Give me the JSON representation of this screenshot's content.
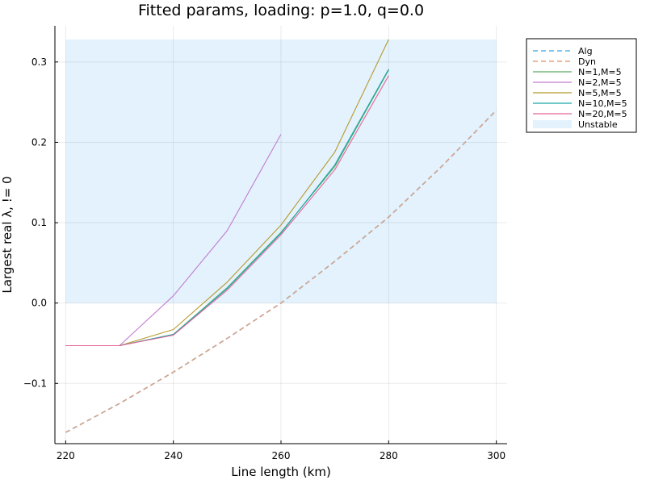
{
  "chart_data": {
    "type": "line",
    "title": "Fitted params, loading: p=1.0, q=0.0",
    "xlabel": "Line length (km)",
    "ylabel": "Largest real λ, != 0",
    "xlim": [
      218,
      302
    ],
    "ylim": [
      -0.175,
      0.345
    ],
    "x_ticks": [
      220,
      240,
      260,
      280,
      300
    ],
    "y_ticks": [
      -0.1,
      0.0,
      0.1,
      0.2,
      0.3
    ],
    "x_tick_labels": [
      "220",
      "240",
      "260",
      "280",
      "300"
    ],
    "y_tick_labels": [
      "−0.1",
      "0.0",
      "0.1",
      "0.2",
      "0.3"
    ],
    "grid": true,
    "legend_position": "top-right (outside plot)",
    "unstable_region": {
      "x": [
        220,
        300
      ],
      "y": [
        0.0,
        0.328
      ],
      "color": "#e3f2fd",
      "label": "Unstable"
    },
    "series": [
      {
        "name": "Alg",
        "color": "#56b4e9",
        "dash": "dashed",
        "x": [
          220,
          230,
          240,
          250,
          260,
          270,
          280,
          290,
          300
        ],
        "y": [
          -0.161,
          -0.125,
          -0.086,
          -0.044,
          0.0,
          0.052,
          0.107,
          0.171,
          0.24
        ]
      },
      {
        "name": "Dyn",
        "color": "#e69f7a",
        "dash": "dashed",
        "x": [
          220,
          230,
          240,
          250,
          260,
          270,
          280,
          290,
          300
        ],
        "y": [
          -0.161,
          -0.125,
          -0.086,
          -0.044,
          0.0,
          0.052,
          0.107,
          0.171,
          0.24
        ]
      },
      {
        "name": "N=1,M=5",
        "color": "#5aaa65",
        "dash": "solid",
        "x": [
          220,
          230,
          240,
          250,
          260,
          270,
          280
        ],
        "y": [
          -0.053,
          -0.053,
          -0.039,
          0.019,
          0.088,
          0.17,
          0.29
        ]
      },
      {
        "name": "N=2,M=5",
        "color": "#c27bd0",
        "dash": "solid",
        "x": [
          220,
          230,
          240,
          250,
          260
        ],
        "y": [
          -0.053,
          -0.053,
          0.009,
          0.09,
          0.21
        ]
      },
      {
        "name": "N=5,M=5",
        "color": "#b79a2a",
        "dash": "solid",
        "x": [
          220,
          230,
          240,
          250,
          260,
          270,
          280
        ],
        "y": [
          -0.053,
          -0.053,
          -0.033,
          0.026,
          0.097,
          0.188,
          0.328
        ]
      },
      {
        "name": "N=10,M=5",
        "color": "#1aa8a8",
        "dash": "solid",
        "x": [
          220,
          230,
          240,
          250,
          260,
          270,
          280
        ],
        "y": [
          -0.053,
          -0.053,
          -0.039,
          0.018,
          0.087,
          0.172,
          0.291
        ]
      },
      {
        "name": "N=20,M=5",
        "color": "#e8649a",
        "dash": "solid",
        "x": [
          220,
          230,
          240,
          250,
          260,
          270,
          280
        ],
        "y": [
          -0.053,
          -0.053,
          -0.04,
          0.016,
          0.085,
          0.166,
          0.283
        ]
      }
    ]
  }
}
